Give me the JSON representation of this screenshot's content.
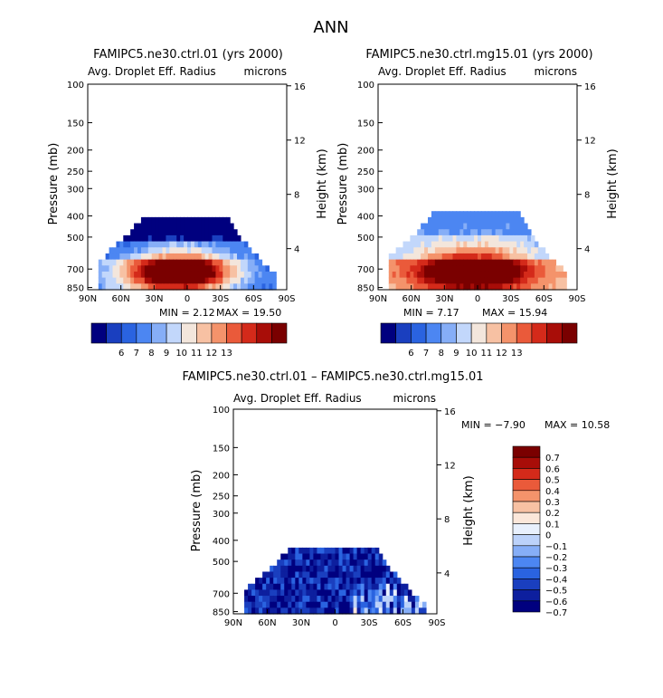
{
  "page": {
    "title": "ANN"
  },
  "colors": {
    "scale": [
      "#00007f",
      "#1a3fbf",
      "#2a63e0",
      "#4c86f2",
      "#86aef7",
      "#c2d7fb",
      "#f3e6dc",
      "#f7c1a3",
      "#f4936b",
      "#ea5a3a",
      "#d42a1a",
      "#a80d08",
      "#7a0000"
    ],
    "diff_scale": [
      "#00007f",
      "#0d1f9e",
      "#1a3fbf",
      "#2a63e0",
      "#4c86f2",
      "#86aef7",
      "#bcd2fa",
      "#e8f0fd",
      "#fbe7da",
      "#f7c1a3",
      "#f4936b",
      "#ea5a3a",
      "#d42a1a",
      "#a80d08",
      "#7a0000"
    ]
  },
  "chart_data": [
    {
      "type": "contour",
      "title": "FAMIPC5.ne30.ctrl.01 (yrs 2000)",
      "subtitle": "Avg. Droplet Eff. Radius",
      "units": "microns",
      "xlabel": "",
      "ylabel": "Pressure (mb)",
      "y2label": "Height (km)",
      "xticks": [
        "90N",
        "60N",
        "30N",
        "0",
        "30S",
        "60S",
        "90S"
      ],
      "yticks": [
        "100",
        "150",
        "200",
        "250",
        "300",
        "400",
        "500",
        "700",
        "850"
      ],
      "y2ticks": [
        "16",
        "12",
        "8",
        "4"
      ],
      "min_label": "MIN = 2.12",
      "max_label": "MAX = 19.50",
      "min": 2.12,
      "max": 19.5,
      "colorbar_labels": [
        "6",
        "7",
        "8",
        "9",
        "10",
        "11",
        "12",
        "13"
      ]
    },
    {
      "type": "contour",
      "title": "FAMIPC5.ne30.ctrl.mg15.01 (yrs 2000)",
      "subtitle": "Avg. Droplet Eff. Radius",
      "units": "microns",
      "ylabel": "Pressure (mb)",
      "y2label": "Height (km)",
      "xticks": [
        "90N",
        "60N",
        "30N",
        "0",
        "30S",
        "60S",
        "90S"
      ],
      "yticks": [
        "100",
        "150",
        "200",
        "250",
        "300",
        "400",
        "500",
        "700",
        "850"
      ],
      "y2ticks": [
        "16",
        "12",
        "8",
        "4"
      ],
      "min_label": "MIN = 7.17",
      "max_label": "MAX = 15.94",
      "min": 7.17,
      "max": 15.94,
      "colorbar_labels": [
        "6",
        "7",
        "8",
        "9",
        "10",
        "11",
        "12",
        "13"
      ]
    },
    {
      "type": "contour",
      "title": "FAMIPC5.ne30.ctrl.01 – FAMIPC5.ne30.ctrl.mg15.01",
      "subtitle": "Avg. Droplet Eff. Radius",
      "units": "microns",
      "ylabel": "Pressure (mb)",
      "y2label": "Height (km)",
      "xticks": [
        "90N",
        "60N",
        "30N",
        "0",
        "30S",
        "60S",
        "90S"
      ],
      "yticks": [
        "100",
        "150",
        "200",
        "250",
        "300",
        "400",
        "500",
        "700",
        "850"
      ],
      "y2ticks": [
        "16",
        "12",
        "8",
        "4"
      ],
      "min_label": "MIN = −7.90",
      "max_label": "MAX = 10.58",
      "min": -7.9,
      "max": 10.58,
      "colorbar_labels": [
        "0.7",
        "0.6",
        "0.5",
        "0.4",
        "0.3",
        "0.2",
        "0.1",
        "0",
        "−0.1",
        "−0.2",
        "−0.3",
        "−0.4",
        "−0.5",
        "−0.6",
        "−0.7"
      ]
    }
  ]
}
